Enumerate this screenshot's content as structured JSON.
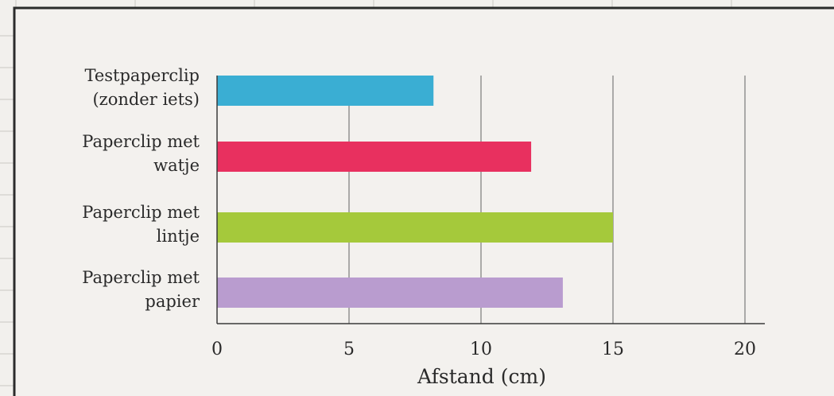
{
  "chart_data": {
    "type": "bar",
    "orientation": "horizontal",
    "categories": [
      [
        "Testpaperclip",
        "(zonder iets)"
      ],
      [
        "Paperclip met",
        "watje"
      ],
      [
        "Paperclip met",
        "lintje"
      ],
      [
        "Paperclip met",
        "papier"
      ]
    ],
    "values": [
      8.2,
      11.9,
      15.0,
      13.1
    ],
    "colors": [
      "#3aaed3",
      "#e8305f",
      "#a5c93b",
      "#b99ccf"
    ],
    "xlabel": "Afstand (cm)",
    "xlim": [
      0,
      20
    ],
    "xticks": [
      0,
      5,
      10,
      15,
      20
    ],
    "grid": true
  }
}
